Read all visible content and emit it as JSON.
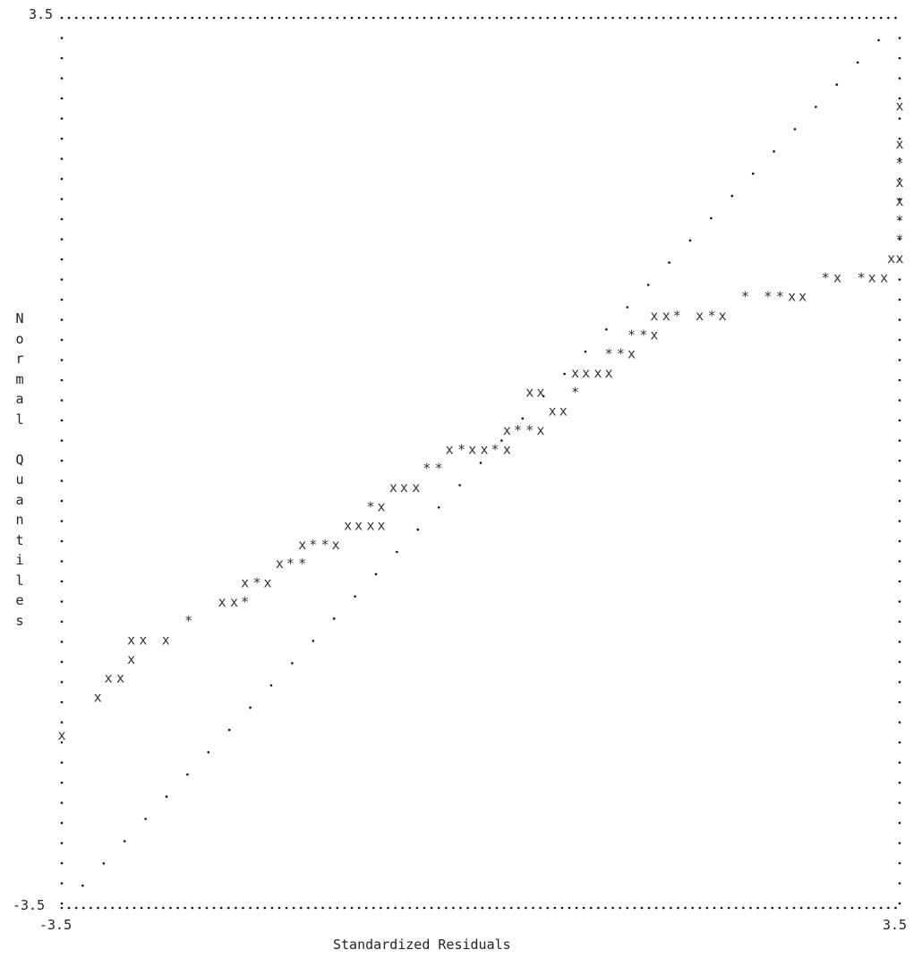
{
  "chart_data": {
    "type": "scatter",
    "style": "ascii-printer-plot",
    "xlabel": "Standardized Residuals",
    "ylabel": "Normal Quantiles",
    "xlim": [
      -3.5,
      3.5
    ],
    "ylim": [
      -3.5,
      3.5
    ],
    "tick_labels": {
      "y_top": "3.5",
      "y_bottom": "-3.5",
      "x_left": "-3.5",
      "x_right": "3.5"
    },
    "glyphs": {
      "point": "x",
      "overlap": "*",
      "reference": "."
    },
    "reference_line": {
      "from": [
        -3.5,
        -3.5
      ],
      "to": [
        3.5,
        3.5
      ]
    },
    "rows": [
      {
        "y": 2.8,
        "marks": [
          {
            "x": 3.5,
            "g": "x"
          }
        ]
      },
      {
        "y": 2.5,
        "marks": [
          {
            "x": 3.5,
            "g": "x"
          }
        ]
      },
      {
        "y": 2.35,
        "marks": [
          {
            "x": 3.5,
            "g": "*"
          }
        ]
      },
      {
        "y": 2.2,
        "marks": [
          {
            "x": 3.5,
            "g": "x"
          }
        ]
      },
      {
        "y": 2.05,
        "marks": [
          {
            "x": 3.5,
            "g": "x"
          }
        ]
      },
      {
        "y": 1.9,
        "marks": [
          {
            "x": 3.5,
            "g": "*"
          }
        ]
      },
      {
        "y": 1.75,
        "marks": [
          {
            "x": 3.5,
            "g": "*"
          }
        ]
      },
      {
        "y": 1.6,
        "marks": [
          {
            "x": 3.43,
            "g": "x"
          },
          {
            "x": 3.5,
            "g": "x"
          }
        ]
      },
      {
        "y": 1.45,
        "marks": [
          {
            "x": 2.88,
            "g": "*"
          },
          {
            "x": 2.98,
            "g": "x"
          },
          {
            "x": 3.18,
            "g": "*"
          },
          {
            "x": 3.27,
            "g": "x"
          },
          {
            "x": 3.37,
            "g": "x"
          }
        ]
      },
      {
        "y": 1.3,
        "marks": [
          {
            "x": 2.21,
            "g": "*"
          },
          {
            "x": 2.4,
            "g": "*"
          },
          {
            "x": 2.5,
            "g": "*"
          },
          {
            "x": 2.6,
            "g": "x"
          },
          {
            "x": 2.69,
            "g": "x"
          }
        ]
      },
      {
        "y": 1.15,
        "marks": [
          {
            "x": 1.45,
            "g": "x"
          },
          {
            "x": 1.55,
            "g": "x"
          },
          {
            "x": 1.64,
            "g": "*"
          },
          {
            "x": 1.83,
            "g": "x"
          },
          {
            "x": 1.93,
            "g": "*"
          },
          {
            "x": 2.02,
            "g": "x"
          }
        ]
      },
      {
        "y": 1.0,
        "marks": [
          {
            "x": 1.26,
            "g": "*"
          },
          {
            "x": 1.36,
            "g": "*"
          },
          {
            "x": 1.45,
            "g": "x"
          }
        ]
      },
      {
        "y": 0.85,
        "marks": [
          {
            "x": 1.07,
            "g": "*"
          },
          {
            "x": 1.17,
            "g": "*"
          },
          {
            "x": 1.26,
            "g": "x"
          }
        ]
      },
      {
        "y": 0.7,
        "marks": [
          {
            "x": 0.79,
            "g": "x"
          },
          {
            "x": 0.88,
            "g": "x"
          },
          {
            "x": 0.98,
            "g": "x"
          },
          {
            "x": 1.07,
            "g": "x"
          }
        ]
      },
      {
        "y": 0.55,
        "marks": [
          {
            "x": 0.41,
            "g": "x"
          },
          {
            "x": 0.5,
            "g": "x"
          },
          {
            "x": 0.79,
            "g": "*"
          }
        ]
      },
      {
        "y": 0.4,
        "marks": [
          {
            "x": 0.6,
            "g": "x"
          },
          {
            "x": 0.69,
            "g": "x"
          }
        ]
      },
      {
        "y": 0.25,
        "marks": [
          {
            "x": 0.22,
            "g": "x"
          },
          {
            "x": 0.31,
            "g": "*"
          },
          {
            "x": 0.41,
            "g": "*"
          },
          {
            "x": 0.5,
            "g": "x"
          }
        ]
      },
      {
        "y": 0.1,
        "marks": [
          {
            "x": -0.26,
            "g": "x"
          },
          {
            "x": -0.16,
            "g": "*"
          },
          {
            "x": -0.07,
            "g": "x"
          },
          {
            "x": 0.03,
            "g": "x"
          },
          {
            "x": 0.12,
            "g": "*"
          },
          {
            "x": 0.22,
            "g": "x"
          }
        ]
      },
      {
        "y": -0.05,
        "marks": [
          {
            "x": -0.45,
            "g": "*"
          },
          {
            "x": -0.35,
            "g": "*"
          }
        ]
      },
      {
        "y": -0.2,
        "marks": [
          {
            "x": -0.73,
            "g": "x"
          },
          {
            "x": -0.64,
            "g": "x"
          },
          {
            "x": -0.54,
            "g": "x"
          }
        ]
      },
      {
        "y": -0.35,
        "marks": [
          {
            "x": -0.92,
            "g": "*"
          },
          {
            "x": -0.83,
            "g": "x"
          }
        ]
      },
      {
        "y": -0.5,
        "marks": [
          {
            "x": -1.11,
            "g": "x"
          },
          {
            "x": -1.02,
            "g": "x"
          },
          {
            "x": -0.92,
            "g": "x"
          },
          {
            "x": -0.83,
            "g": "x"
          }
        ]
      },
      {
        "y": -0.65,
        "marks": [
          {
            "x": -1.49,
            "g": "x"
          },
          {
            "x": -1.4,
            "g": "*"
          },
          {
            "x": -1.3,
            "g": "*"
          },
          {
            "x": -1.21,
            "g": "x"
          }
        ]
      },
      {
        "y": -0.8,
        "marks": [
          {
            "x": -1.68,
            "g": "x"
          },
          {
            "x": -1.59,
            "g": "*"
          },
          {
            "x": -1.49,
            "g": "*"
          }
        ]
      },
      {
        "y": -0.95,
        "marks": [
          {
            "x": -1.97,
            "g": "x"
          },
          {
            "x": -1.87,
            "g": "*"
          },
          {
            "x": -1.78,
            "g": "x"
          }
        ]
      },
      {
        "y": -1.1,
        "marks": [
          {
            "x": -2.16,
            "g": "x"
          },
          {
            "x": -2.06,
            "g": "x"
          },
          {
            "x": -1.97,
            "g": "*"
          }
        ]
      },
      {
        "y": -1.25,
        "marks": [
          {
            "x": -2.44,
            "g": "*"
          }
        ]
      },
      {
        "y": -1.4,
        "marks": [
          {
            "x": -2.92,
            "g": "x"
          },
          {
            "x": -2.82,
            "g": "x"
          },
          {
            "x": -2.63,
            "g": "x"
          }
        ]
      },
      {
        "y": -1.55,
        "marks": [
          {
            "x": -2.92,
            "g": "x"
          }
        ]
      },
      {
        "y": -1.7,
        "marks": [
          {
            "x": -3.11,
            "g": "x"
          },
          {
            "x": -3.01,
            "g": "x"
          }
        ]
      },
      {
        "y": -1.85,
        "marks": [
          {
            "x": -3.2,
            "g": "x"
          }
        ]
      },
      {
        "y": -2.15,
        "marks": [
          {
            "x": -3.5,
            "g": "x"
          }
        ]
      }
    ]
  }
}
